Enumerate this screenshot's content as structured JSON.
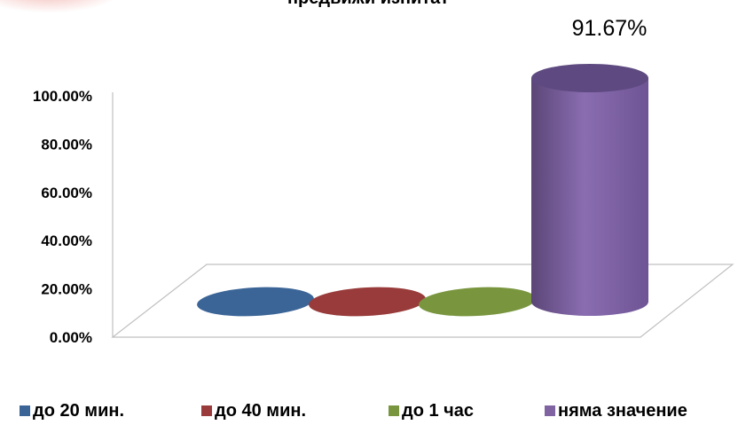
{
  "chart_data": {
    "type": "bar",
    "title": "предвижи изпитат",
    "categories": [
      "до 20 мин.",
      "до 40 мин.",
      "до 1 час",
      "няма значение"
    ],
    "values": [
      0,
      0,
      0,
      91.67
    ],
    "value_labels": [
      "",
      "",
      "",
      "91.67%"
    ],
    "y_ticks": [
      "0.00%",
      "20.00%",
      "40.00%",
      "60.00%",
      "80.00%",
      "100.00%"
    ],
    "ylim": [
      0,
      100
    ],
    "colors": [
      "#3b6597",
      "#983b3a",
      "#79963f",
      "#8064a2"
    ],
    "legend_position": "bottom",
    "grid": false
  }
}
